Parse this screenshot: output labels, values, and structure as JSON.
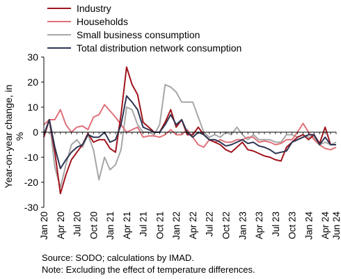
{
  "chart_data": {
    "type": "line",
    "ylabel": "Year-on-year change, in %",
    "ylim": [
      -30,
      30
    ],
    "yticks": [
      "30",
      "20",
      "10",
      "0",
      "-10",
      "-20",
      "-30"
    ],
    "grid": false,
    "legend_position": "top-left",
    "x": [
      "Jan 20",
      "Feb 20",
      "Mar 20",
      "Apr 20",
      "May 20",
      "Jun 20",
      "Jul 20",
      "Aug 20",
      "Sep 20",
      "Oct 20",
      "Nov 20",
      "Dec 20",
      "Jan 21",
      "Feb 21",
      "Mar 21",
      "Apr 21",
      "May 21",
      "Jun 21",
      "Jul 21",
      "Aug 21",
      "Sep 21",
      "Oct 21",
      "Nov 21",
      "Dec 21",
      "Jan 22",
      "Feb 22",
      "Mar 22",
      "Apr 22",
      "May 22",
      "Jun 22",
      "Jul 22",
      "Aug 22",
      "Sep 22",
      "Oct 22",
      "Nov 22",
      "Dec 22",
      "Jan 23",
      "Feb 23",
      "Mar 23",
      "Apr 23",
      "May 23",
      "Jun 23",
      "Jul 23",
      "Aug 23",
      "Sep 23",
      "Oct 23",
      "Nov 23",
      "Dec 23",
      "Jan 24",
      "Feb 24",
      "Mar 24",
      "Apr 24",
      "May 24",
      "Jun 24"
    ],
    "xtick_labels": [
      {
        "index": 0,
        "label": "Jan 20"
      },
      {
        "index": 3,
        "label": "Apr 20"
      },
      {
        "index": 6,
        "label": "Jul 20"
      },
      {
        "index": 9,
        "label": "Oct 20"
      },
      {
        "index": 12,
        "label": "Jan 21"
      },
      {
        "index": 15,
        "label": "Apr 21"
      },
      {
        "index": 18,
        "label": "Jul 21"
      },
      {
        "index": 21,
        "label": "Oct 21"
      },
      {
        "index": 24,
        "label": "Jan 22"
      },
      {
        "index": 27,
        "label": "Apr 22"
      },
      {
        "index": 30,
        "label": "Jul 22"
      },
      {
        "index": 33,
        "label": "Oct 22"
      },
      {
        "index": 36,
        "label": "Jan 23"
      },
      {
        "index": 39,
        "label": "Apr 23"
      },
      {
        "index": 42,
        "label": "Jul 23"
      },
      {
        "index": 45,
        "label": "Oct 23"
      },
      {
        "index": 48,
        "label": "Jan 24"
      },
      {
        "index": 51,
        "label": "Apr 24"
      },
      {
        "index": 53,
        "label": "Jun 24"
      }
    ],
    "series": [
      {
        "name": "Industry",
        "color": "#a0141c",
        "values": [
          -2,
          5,
          -8,
          -24.5,
          -17,
          -11,
          -8,
          -5,
          -0.5,
          -4,
          -3,
          -3,
          -6.5,
          -8,
          7,
          26,
          19,
          15,
          4,
          2,
          0,
          0,
          4,
          9,
          2,
          5,
          -1,
          -1,
          2,
          -1,
          -3,
          -4,
          -5,
          -7,
          -8,
          -6,
          -4,
          -7,
          -7.5,
          -8.5,
          -9.5,
          -10,
          -11,
          -11.5,
          -6,
          -4,
          -2,
          -1,
          -3,
          -1,
          -4.5,
          2,
          -5,
          -5
        ]
      },
      {
        "name": "Households",
        "color": "#e07078",
        "values": [
          3,
          5,
          5,
          9,
          3,
          0,
          2,
          2.5,
          1,
          6,
          7,
          11,
          8.5,
          6,
          3,
          0,
          1,
          2,
          -2,
          -1.5,
          -1.5,
          -2,
          -1,
          1,
          -1,
          -1,
          1,
          -2,
          -5,
          -6,
          -3,
          -4,
          -3,
          -4,
          -4,
          -3,
          -3,
          -2,
          -2,
          -4,
          -3.5,
          -4,
          -5,
          -4.5,
          -3,
          -3,
          0,
          3.5,
          0,
          -3,
          -5,
          -6.5,
          -7,
          -6
        ]
      },
      {
        "name": "Small business consumption",
        "color": "#a6a6a6",
        "values": [
          -1,
          5,
          -14,
          -22,
          -13,
          -5,
          -3,
          -6,
          -1,
          -7,
          -19,
          -10,
          -15,
          -13,
          -7,
          10,
          9,
          3,
          0,
          0,
          -1,
          3,
          19,
          18,
          16,
          12,
          12,
          12,
          6,
          0,
          -2,
          -1,
          -2,
          0,
          -1,
          2,
          -1,
          -3,
          -1,
          -3,
          -3,
          -3,
          -4,
          -4,
          -1,
          -1,
          -2,
          -1,
          -2,
          -2,
          -5,
          -4,
          -5,
          -4
        ]
      },
      {
        "name": "Total distribution network consumption",
        "color": "#2d3452",
        "values": [
          -1,
          5,
          -6,
          -14.5,
          -11,
          -8,
          -6,
          -5,
          -1,
          -2,
          -2,
          0,
          -4,
          -3,
          3,
          14.5,
          12,
          9,
          2,
          1,
          0,
          0,
          3,
          7,
          3,
          5,
          0,
          -2,
          0,
          -1,
          -3,
          -3,
          -4,
          -5.5,
          -5,
          -4,
          -3,
          -4.5,
          -4,
          -5.5,
          -6,
          -7,
          -8.5,
          -8,
          -7.5,
          -4,
          -3,
          -2,
          -1,
          -1,
          -5,
          -2,
          -5,
          -5
        ]
      }
    ]
  },
  "notes": {
    "source": "Source: SODO; calculations by IMAD.",
    "note": "Note: Excluding the effect of temperature differences."
  }
}
